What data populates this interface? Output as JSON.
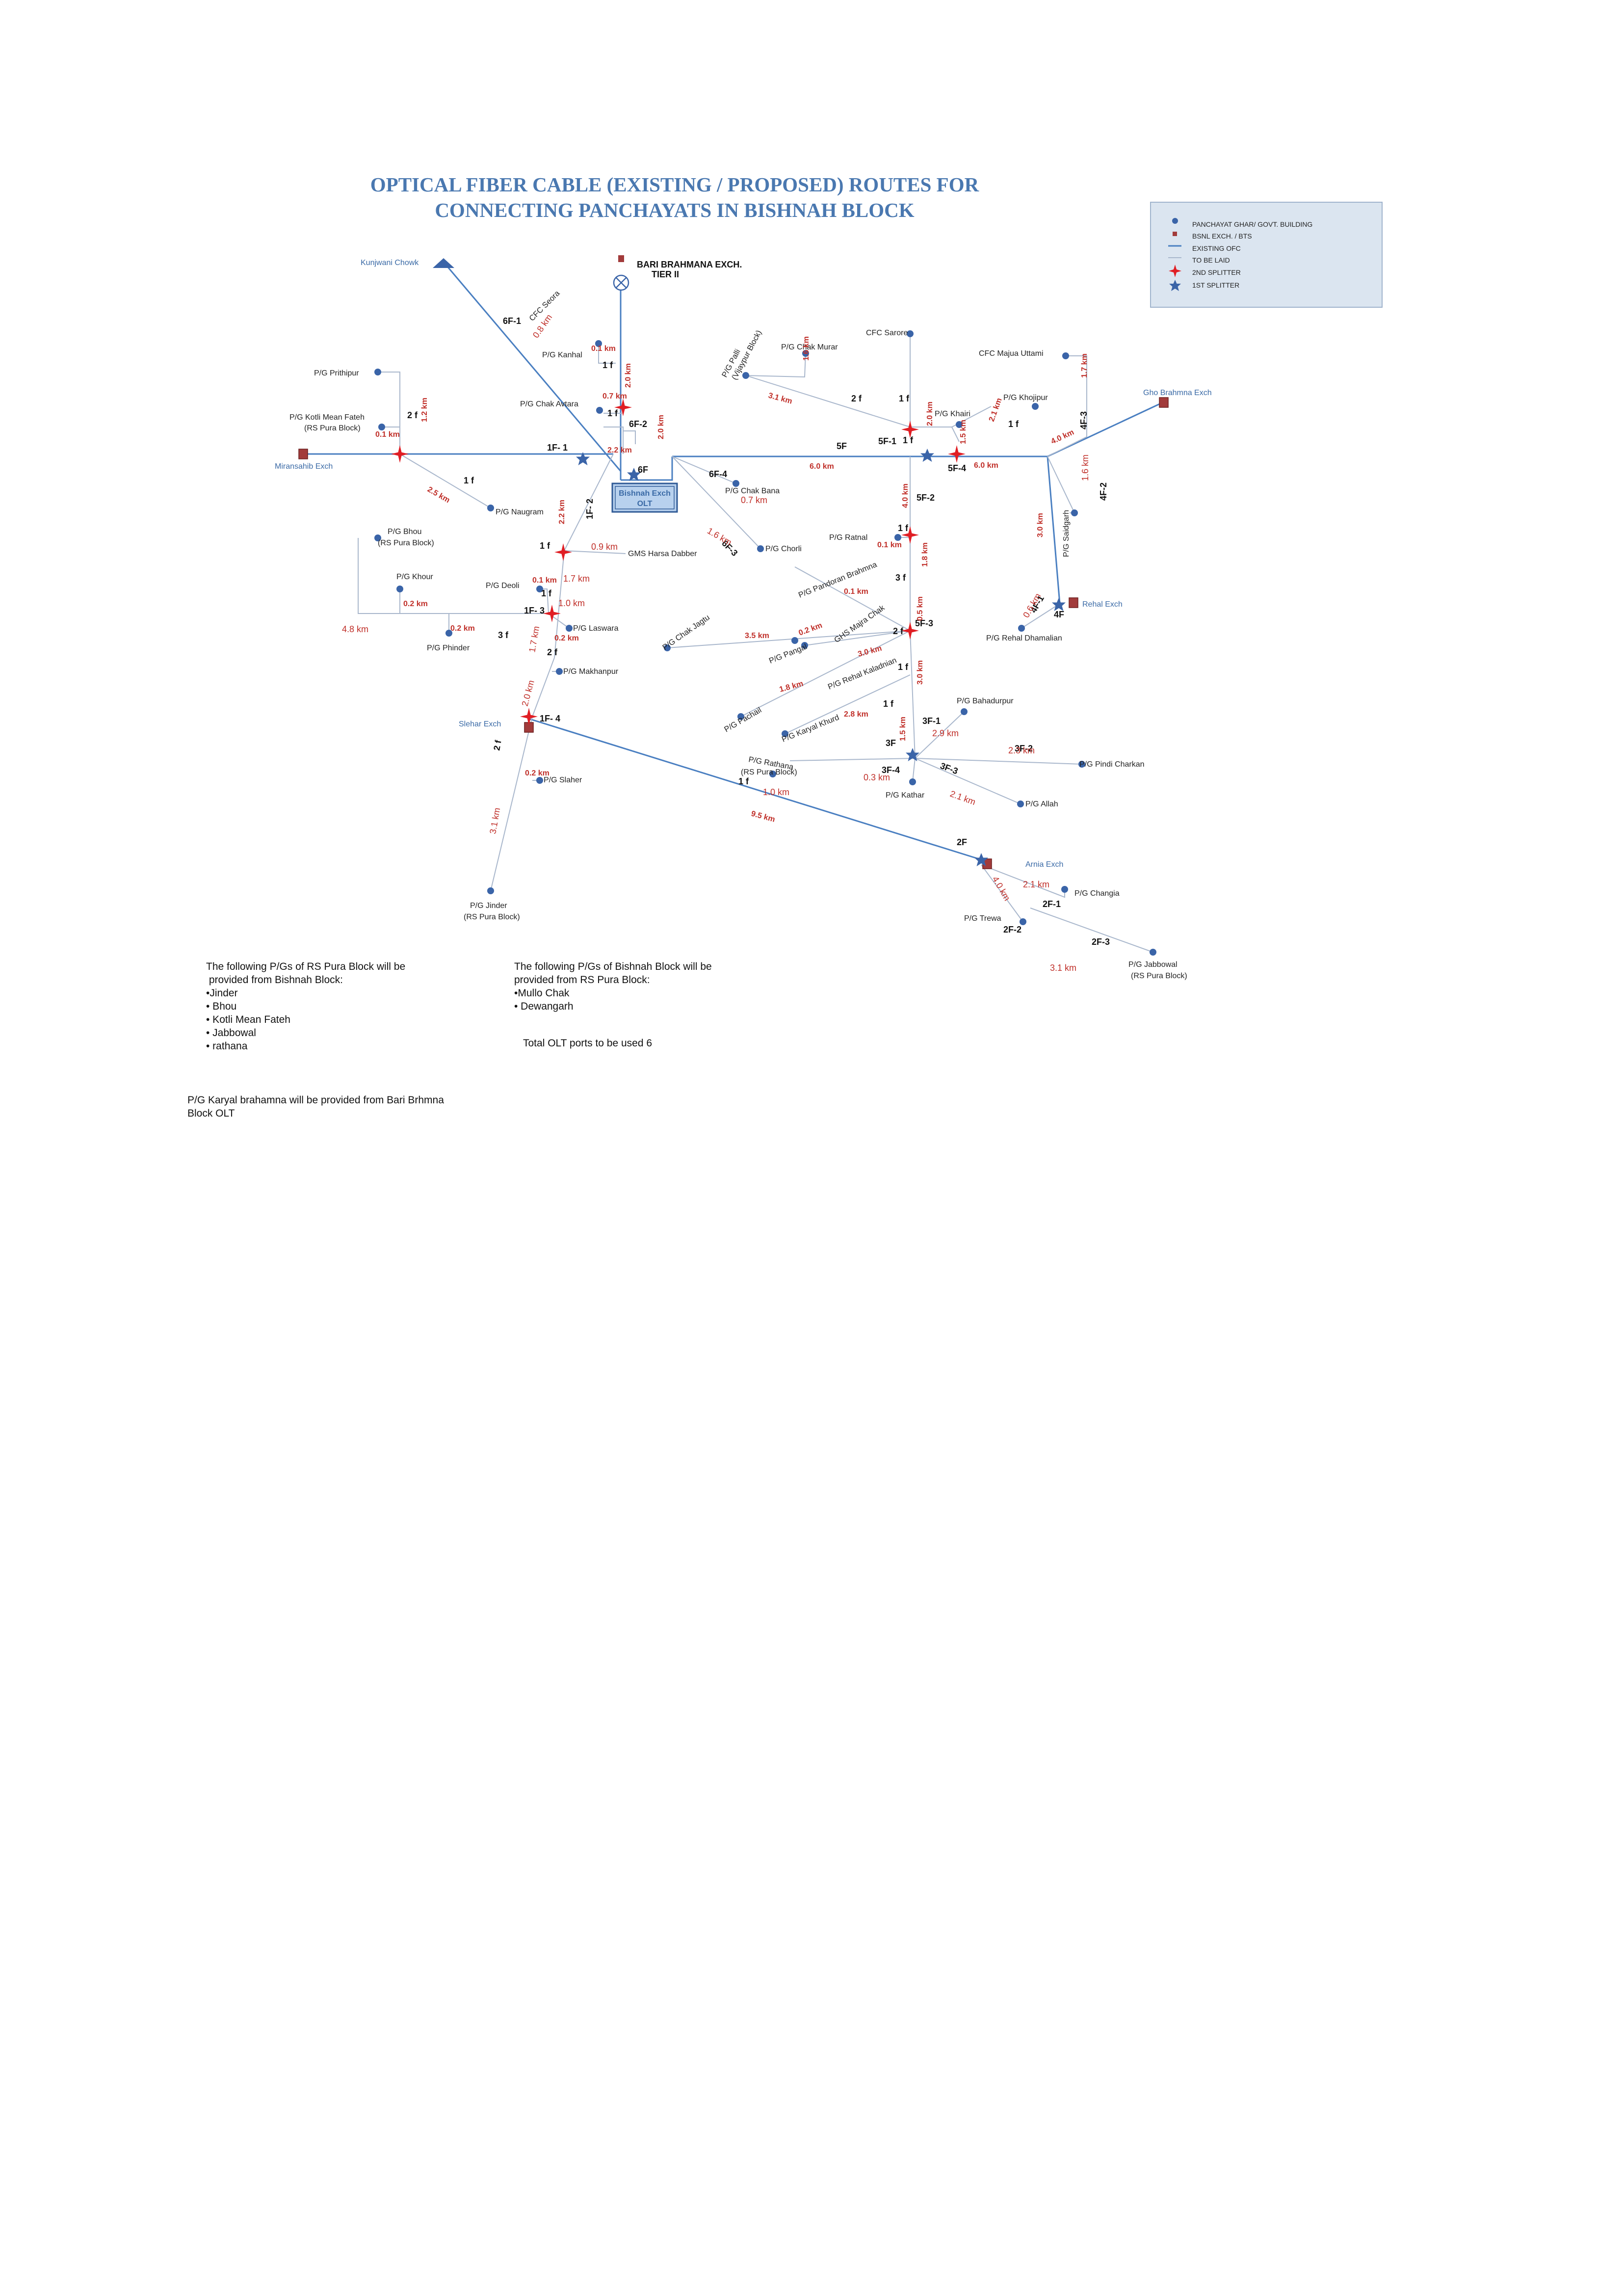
{
  "title": {
    "line1": "OPTICAL FIBER CABLE (EXISTING / PROPOSED) ROUTES FOR",
    "line2": "CONNECTING PANCHAYATS IN BISHNAH BLOCK"
  },
  "legend": {
    "items": [
      {
        "label": "PANCHAYAT GHAR/ GOVT. BUILDING",
        "icon": "panchayat-dot-icon"
      },
      {
        "label": "BSNL EXCH. / BTS",
        "icon": "exchange-square-icon"
      },
      {
        "label": "EXISTING OFC",
        "icon": "existing-ofc-line-icon"
      },
      {
        "label": "TO BE LAID",
        "icon": "to-be-laid-line-icon"
      },
      {
        "label": "2ND SPLITTER",
        "icon": "second-splitter-icon"
      },
      {
        "label": "1ST SPLITTER",
        "icon": "first-splitter-icon"
      }
    ]
  },
  "colors": {
    "title": "#4a78b0",
    "existing_ofc": "#4a7fc1",
    "to_be_laid": "#a9b7cc",
    "splitter1": "#3a64a8",
    "splitter2": "#e01e24",
    "exchange": "#a23b3b",
    "distance": "#c0302a",
    "node": "#3a64a8",
    "legend_bg": "#dbe5f0"
  },
  "olt": {
    "line1": "Bishnah Exch",
    "line2": "OLT"
  },
  "places": [
    "Kunjwani Chowk",
    "BARI BRAHMANA EXCH.",
    "TIER II",
    "CFC Seora",
    "P/G Kanhal",
    "P/G Chak Avtara",
    "P/G Prithipur",
    "P/G Kotli Mean Fateh",
    "(RS Pura Block)",
    "Miransahib Exch",
    "P/G Naugram",
    "P/G Bhou",
    "P/G Khour",
    "P/G Phinder",
    "P/G Deoli",
    "P/G Laswara",
    "GMS Harsa Dabber",
    "P/G Makhanpur",
    "Slehar Exch",
    "P/G Slaher",
    "P/G Jinder",
    "P/G Palli",
    "(Vijaypur Block)",
    "P/G Chak Murar",
    "CFC Sarore",
    "CFC Majua Uttami",
    "P/G Khairi",
    "P/G Khojipur",
    "Gho Brahmna Exch",
    "P/G Chak Bana",
    "P/G Chorli",
    "P/G Ratnal",
    "P/G Pandoran Brahmna",
    "P/G Chak Jagtu",
    "GHS Majra Chak",
    "P/G Pangal",
    "P/G Rehal Kaladnian",
    "P/G Pachail",
    "P/G Karyal Khurd",
    "P/G Rathana",
    "P/G Kathar",
    "P/G Bahadurpur",
    "P/G Pindi Charkan",
    "P/G Allah",
    "P/G Saidgarh",
    "Rehal Exch",
    "P/G Rehal Dhamalian",
    "Arnia Exch",
    "P/G Changia",
    "P/G Trewa",
    "P/G Jabbowal"
  ],
  "route_labels": [
    "6F-1",
    "6F-2",
    "6F",
    "6F-4",
    "6F-3",
    "1F- 1",
    "1F- 2",
    "1F- 3",
    "1F- 4",
    "5F",
    "5F-1",
    "5F-2",
    "5F-3",
    "5F-4",
    "4F",
    "4F-1",
    "4F-2",
    "4F-3",
    "3F",
    "3F-1",
    "3F-2",
    "3F-3",
    "3F-4",
    "2F",
    "2F-1",
    "2F-2",
    "2F-3"
  ],
  "fiber_counts": [
    "1 f",
    "2 f",
    "3 f"
  ],
  "distances": [
    "0.8 km",
    "0.1 km",
    "2.0 km",
    "0.7 km",
    "2.2 km",
    "1.2 km",
    "2.5 km",
    "0.9 km",
    "1.7 km",
    "1.0 km",
    "4.8 km",
    "0.2 km",
    "1.6 km",
    "3.1 km",
    "6.0 km",
    "1.5 km",
    "2.1 km",
    "4.0 km",
    "1.8 km",
    "0.5 km",
    "3.5 km",
    "3.0 km",
    "2.8 km",
    "0.3 km",
    "2.9 km",
    "2.3 km",
    "9.5 km",
    "0.6 km"
  ],
  "notes": {
    "rs_pura_to_bishnah": {
      "heading": [
        "The following P/Gs of RS Pura Block will be",
        " provided from Bishnah Block:"
      ],
      "items": [
        "•Jinder",
        "• Bhou",
        "• Kotli Mean Fateh",
        "• Jabbowal",
        "• rathana"
      ]
    },
    "bishnah_to_rs_pura": {
      "heading": [
        "The following P/Gs of Bishnah Block will be",
        "provided from RS Pura Block:"
      ],
      "items": [
        "•Mullo Chak",
        "• Dewangarh"
      ]
    },
    "olt_ports": "Total OLT ports to be used 6",
    "karyal": [
      "P/G Karyal brahamna will be provided from Bari Brhmna",
      "Block OLT"
    ]
  }
}
